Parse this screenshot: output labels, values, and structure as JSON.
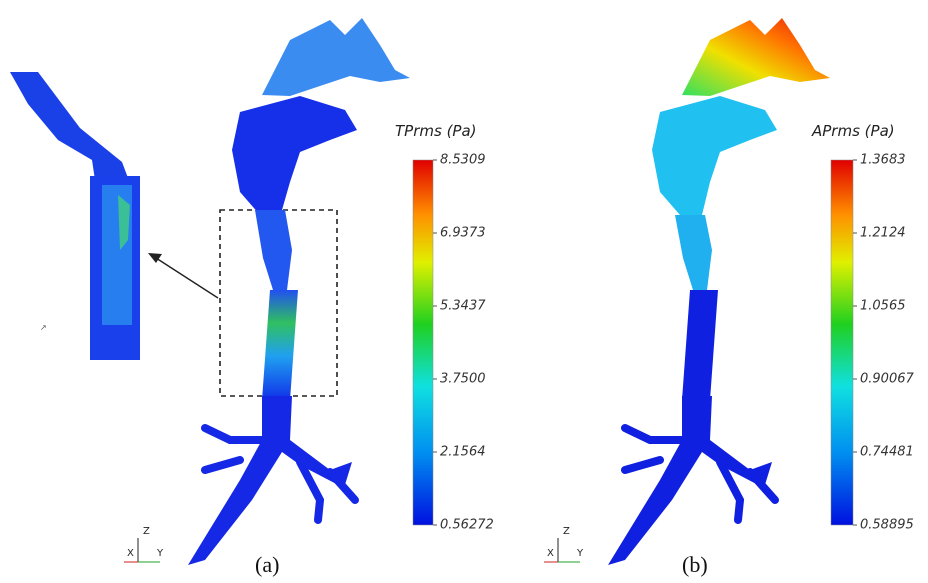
{
  "panel_a": {
    "colorbar": {
      "title": "TPrms (Pa)",
      "ticks": [
        "8.5309",
        "6.9373",
        "5.3437",
        "3.7500",
        "2.1564",
        "0.56272"
      ]
    },
    "label": "(a)",
    "axes": {
      "z": "Z",
      "x": "X",
      "y": "Y"
    }
  },
  "panel_b": {
    "colorbar": {
      "title": "APrms (Pa)",
      "ticks": [
        "1.3683",
        "1.2124",
        "1.0565",
        "0.90067",
        "0.74481",
        "0.58895"
      ]
    },
    "label": "(b)",
    "axes": {
      "z": "Z",
      "x": "X",
      "y": "Y"
    }
  }
}
